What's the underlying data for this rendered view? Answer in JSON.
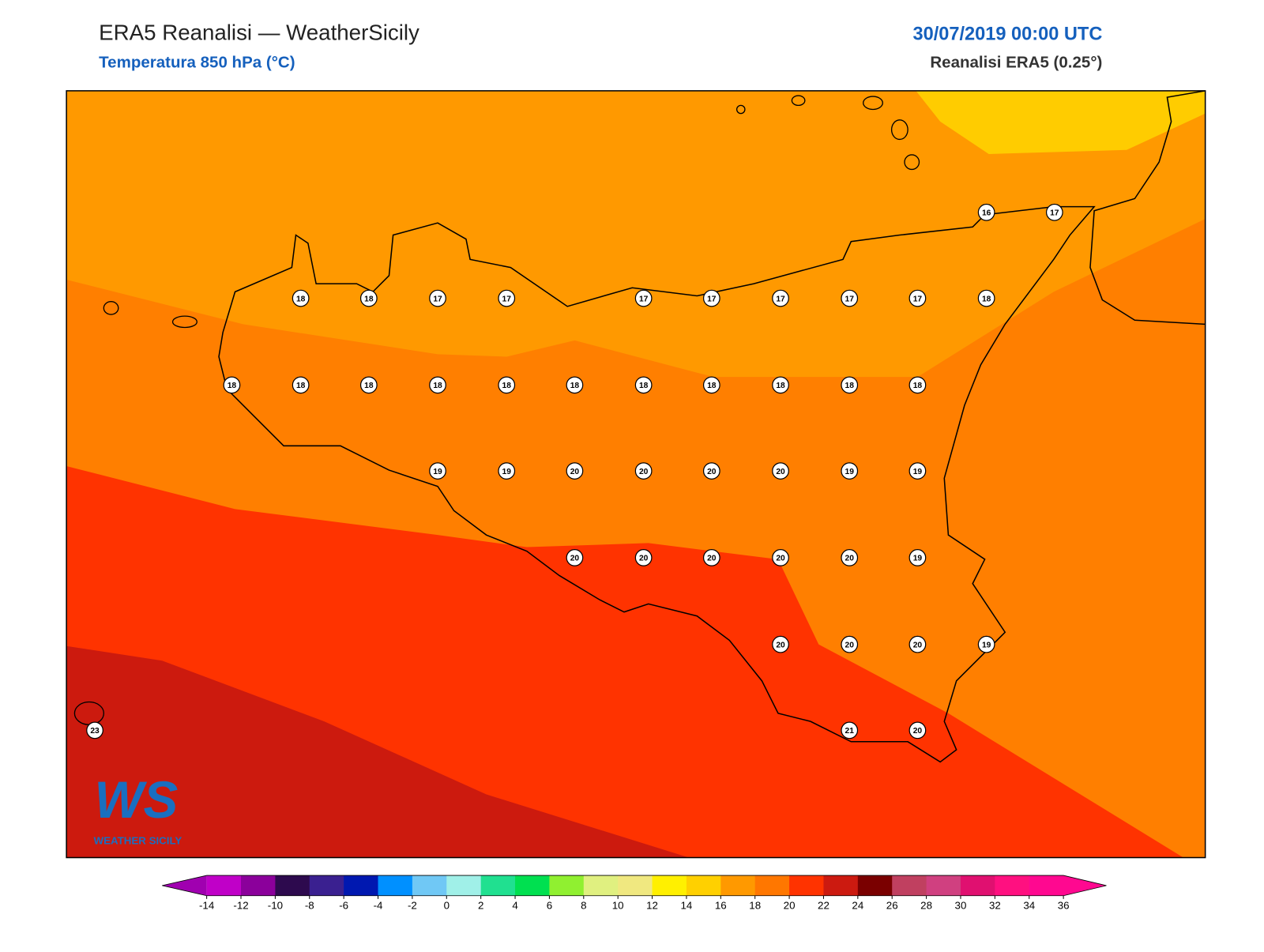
{
  "header": {
    "title": "ERA5 Reanalisi — WeatherSicily",
    "subtitle": "Temperatura 850 hPa (°C)",
    "date": "30/07/2019 00:00 UTC",
    "source": "Reanalisi ERA5 (0.25°)"
  },
  "stations": [
    16,
    17,
    18,
    18,
    17,
    17,
    17,
    17,
    17,
    17,
    17,
    18,
    18,
    18,
    18,
    18,
    18,
    18,
    18,
    18,
    18,
    18,
    18,
    19,
    19,
    20,
    20,
    20,
    20,
    19,
    19,
    20,
    20,
    20,
    20,
    20,
    19,
    20,
    20,
    20,
    19,
    23,
    21,
    20
  ],
  "colorbar": {
    "ticks": [
      -14,
      -12,
      -10,
      -8,
      -6,
      -4,
      -2,
      0,
      2,
      4,
      6,
      8,
      10,
      12,
      14,
      16,
      18,
      20,
      22,
      24,
      26,
      28,
      30,
      32,
      34,
      36
    ],
    "under": "#a000b0",
    "over": "#ff0890",
    "colors": [
      "#c000c8",
      "#8b009b",
      "#2d0a4e",
      "#3a2090",
      "#0018b0",
      "#0090ff",
      "#70c8f5",
      "#a0f0e8",
      "#20e090",
      "#00e050",
      "#90f030",
      "#e0f080",
      "#f0e880",
      "#fff000",
      "#ffd000",
      "#ff9900",
      "#ff7700",
      "#ff3300",
      "#cc1a10",
      "#7a0000",
      "#c04060",
      "#d04080",
      "#e01070",
      "#ff1080",
      "#ff0890"
    ]
  },
  "logo": {
    "letters": "WS",
    "text": "WEATHER SICILY"
  }
}
